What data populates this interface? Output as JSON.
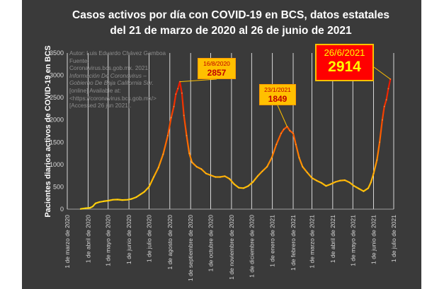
{
  "chart_data": {
    "type": "line",
    "title": "Casos activos por día con COVID-19 en BCS, datos estatales del 21 de marzo de 2020 al 26 de junio de 2021",
    "title_lines": [
      "Casos activos por día con COVID-19 en BCS, datos estatales",
      "del 21 de marzo de 2020 al 26 de junio de 2021"
    ],
    "ylabel": "Pacientes diarios activos de COVID-19 en BCS",
    "xlabel": "",
    "ylim": [
      0,
      3500
    ],
    "yticks": [
      0,
      500,
      1000,
      1500,
      2000,
      2500,
      3000,
      3500
    ],
    "xlim": [
      "2020-03-01",
      "2021-07-01"
    ],
    "xticks": [
      {
        "date": "2020-03-01",
        "label": "1 de marzo de 2020"
      },
      {
        "date": "2020-04-01",
        "label": "1 de abril de 2020"
      },
      {
        "date": "2020-05-01",
        "label": "1 de mayo de 2020"
      },
      {
        "date": "2020-06-01",
        "label": "1 de junio de 2020"
      },
      {
        "date": "2020-07-01",
        "label": "1 de julio de 2020"
      },
      {
        "date": "2020-08-01",
        "label": "1 de agosto de 2020"
      },
      {
        "date": "2020-09-01",
        "label": "1 de septiembre de 2020"
      },
      {
        "date": "2020-10-01",
        "label": "1 de octubre de 2020"
      },
      {
        "date": "2020-11-01",
        "label": "1 de noviembre de 2020"
      },
      {
        "date": "2020-12-01",
        "label": "1 de diciembre de 2020"
      },
      {
        "date": "2021-01-01",
        "label": "1 de enero de 2021"
      },
      {
        "date": "2021-02-01",
        "label": "1 de febrero de 2021"
      },
      {
        "date": "2021-03-01",
        "label": "1 de marzo de 2021"
      },
      {
        "date": "2021-04-01",
        "label": "1 de abril de 2021"
      },
      {
        "date": "2021-05-01",
        "label": "1 de mayo de 2021"
      },
      {
        "date": "2021-06-01",
        "label": "1 de junio de 2021"
      },
      {
        "date": "2021-07-01",
        "label": "1 de julio de 2021"
      }
    ],
    "grid": "vertical",
    "legend": "none",
    "colors": {
      "background": "#3a3a3a",
      "grid": "#ffffff",
      "line_low": "#ffd700",
      "line_mid": "#ff8000",
      "line_high": "#e60000"
    },
    "series": [
      {
        "points": [
          [
            "2020-03-21",
            5
          ],
          [
            "2020-03-28",
            20
          ],
          [
            "2020-04-04",
            30
          ],
          [
            "2020-04-08",
            60
          ],
          [
            "2020-04-12",
            130
          ],
          [
            "2020-04-18",
            160
          ],
          [
            "2020-04-24",
            175
          ],
          [
            "2020-05-01",
            190
          ],
          [
            "2020-05-08",
            210
          ],
          [
            "2020-05-15",
            215
          ],
          [
            "2020-05-22",
            205
          ],
          [
            "2020-05-30",
            210
          ],
          [
            "2020-06-05",
            230
          ],
          [
            "2020-06-12",
            270
          ],
          [
            "2020-06-18",
            330
          ],
          [
            "2020-06-24",
            390
          ],
          [
            "2020-07-01",
            500
          ],
          [
            "2020-07-08",
            720
          ],
          [
            "2020-07-15",
            930
          ],
          [
            "2020-07-22",
            1230
          ],
          [
            "2020-07-29",
            1650
          ],
          [
            "2020-08-03",
            2050
          ],
          [
            "2020-08-07",
            2300
          ],
          [
            "2020-08-10",
            2580
          ],
          [
            "2020-08-13",
            2700
          ],
          [
            "2020-08-16",
            2857
          ],
          [
            "2020-08-19",
            2600
          ],
          [
            "2020-08-22",
            2100
          ],
          [
            "2020-08-26",
            1650
          ],
          [
            "2020-08-30",
            1250
          ],
          [
            "2020-09-03",
            1050
          ],
          [
            "2020-09-10",
            950
          ],
          [
            "2020-09-17",
            900
          ],
          [
            "2020-09-24",
            800
          ],
          [
            "2020-10-01",
            760
          ],
          [
            "2020-10-08",
            720
          ],
          [
            "2020-10-15",
            720
          ],
          [
            "2020-10-22",
            740
          ],
          [
            "2020-10-29",
            680
          ],
          [
            "2020-11-05",
            560
          ],
          [
            "2020-11-12",
            480
          ],
          [
            "2020-11-19",
            470
          ],
          [
            "2020-11-26",
            520
          ],
          [
            "2020-12-03",
            610
          ],
          [
            "2020-12-10",
            740
          ],
          [
            "2020-12-17",
            850
          ],
          [
            "2020-12-24",
            950
          ],
          [
            "2020-12-31",
            1150
          ],
          [
            "2021-01-07",
            1450
          ],
          [
            "2021-01-14",
            1700
          ],
          [
            "2021-01-18",
            1790
          ],
          [
            "2021-01-23",
            1849
          ],
          [
            "2021-01-27",
            1760
          ],
          [
            "2021-02-01",
            1700
          ],
          [
            "2021-02-05",
            1450
          ],
          [
            "2021-02-10",
            1150
          ],
          [
            "2021-02-15",
            950
          ],
          [
            "2021-02-22",
            820
          ],
          [
            "2021-03-01",
            700
          ],
          [
            "2021-03-08",
            640
          ],
          [
            "2021-03-15",
            590
          ],
          [
            "2021-03-22",
            520
          ],
          [
            "2021-03-29",
            560
          ],
          [
            "2021-04-05",
            610
          ],
          [
            "2021-04-12",
            640
          ],
          [
            "2021-04-19",
            650
          ],
          [
            "2021-04-26",
            600
          ],
          [
            "2021-05-03",
            520
          ],
          [
            "2021-05-10",
            460
          ],
          [
            "2021-05-17",
            400
          ],
          [
            "2021-05-24",
            470
          ],
          [
            "2021-05-28",
            600
          ],
          [
            "2021-06-01",
            800
          ],
          [
            "2021-06-06",
            1100
          ],
          [
            "2021-06-10",
            1500
          ],
          [
            "2021-06-14",
            2000
          ],
          [
            "2021-06-17",
            2300
          ],
          [
            "2021-06-20",
            2450
          ],
          [
            "2021-06-23",
            2700
          ],
          [
            "2021-06-26",
            2914
          ]
        ]
      }
    ],
    "annotations": [
      {
        "date_label": "16/8/2020",
        "value_label": "2857",
        "x": "2020-08-16",
        "y": 2857
      },
      {
        "date_label": "23/1/2021",
        "value_label": "1849",
        "x": "2021-01-23",
        "y": 1849
      },
      {
        "date_label": "26/6/2021",
        "value_label": "2914",
        "x": "2021-06-26",
        "y": 2914
      }
    ]
  },
  "source_note": [
    {
      "text": "Autor: Luis Eduardo Chávez Gamboa",
      "italic": false
    },
    {
      "text": "Fuente:",
      "italic": false
    },
    {
      "text": "Coronavirus.bcs.gob.mx. 2021.",
      "italic": false
    },
    {
      "text": "Información De Coronavirus –",
      "italic": true
    },
    {
      "text": "Gobierno De Baja California Sur.",
      "italic": true
    },
    {
      "text": "[online] Available at:",
      "italic": false
    },
    {
      "text": "<https://coronavirus.bcs.gob.mx/>",
      "italic": false
    },
    {
      "text": "[Accessed 26 jun 2021].",
      "italic": false
    }
  ]
}
